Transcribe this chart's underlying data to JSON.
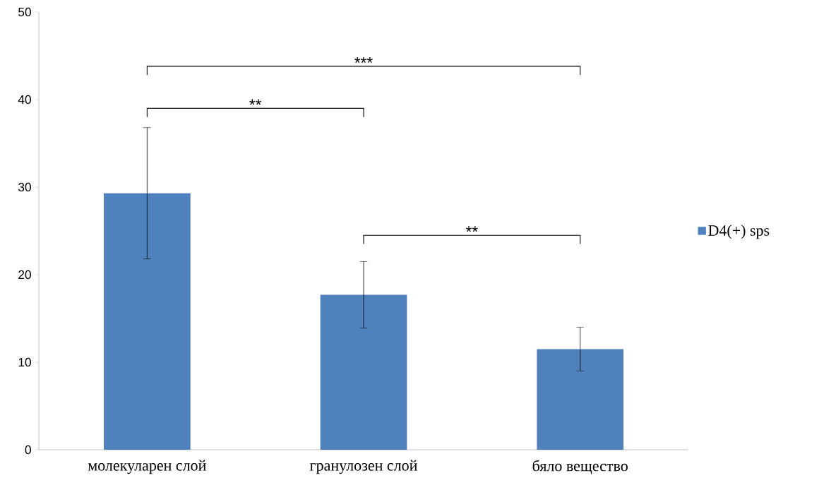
{
  "chart_data": {
    "type": "bar",
    "categories": [
      "молекуларен слой",
      "гранулозен слой",
      "бяло вещество"
    ],
    "series": [
      {
        "name": "D4(+) sps",
        "color": "#4f81bd",
        "values": [
          29.3,
          17.7,
          11.5
        ],
        "errors": [
          7.5,
          3.8,
          2.5
        ]
      }
    ],
    "ylim": [
      0,
      50
    ],
    "yticks": [
      0,
      10,
      20,
      30,
      40,
      50
    ],
    "legend": "right",
    "annotations": [
      "***",
      "**",
      "**"
    ]
  }
}
